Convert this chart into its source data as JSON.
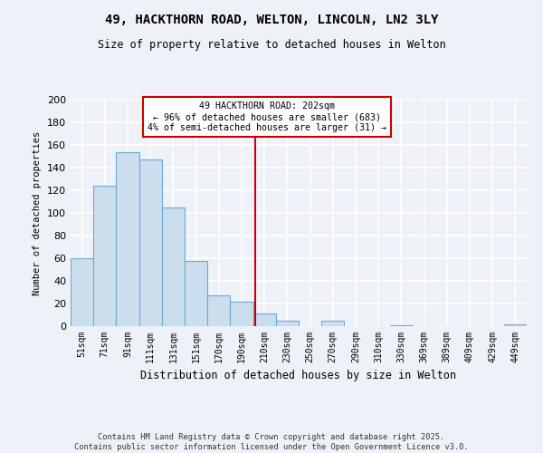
{
  "title": "49, HACKTHORN ROAD, WELTON, LINCOLN, LN2 3LY",
  "subtitle": "Size of property relative to detached houses in Welton",
  "xlabel": "Distribution of detached houses by size in Welton",
  "ylabel": "Number of detached properties",
  "bar_labels": [
    "51sqm",
    "71sqm",
    "91sqm",
    "111sqm",
    "131sqm",
    "151sqm",
    "170sqm",
    "190sqm",
    "210sqm",
    "230sqm",
    "250sqm",
    "270sqm",
    "290sqm",
    "310sqm",
    "330sqm",
    "369sqm",
    "389sqm",
    "409sqm",
    "429sqm",
    "449sqm"
  ],
  "bar_values": [
    60,
    124,
    154,
    147,
    105,
    58,
    27,
    22,
    11,
    5,
    0,
    5,
    0,
    0,
    1,
    0,
    0,
    0,
    0,
    2
  ],
  "bar_color": "#ccdded",
  "bar_edge_color": "#6aaad4",
  "ylim": [
    0,
    200
  ],
  "yticks": [
    0,
    20,
    40,
    60,
    80,
    100,
    120,
    140,
    160,
    180,
    200
  ],
  "vline_x": 7.6,
  "vline_color": "#cc0000",
  "annotation_title": "49 HACKTHORN ROAD: 202sqm",
  "annotation_line1": "← 96% of detached houses are smaller (683)",
  "annotation_line2": "4% of semi-detached houses are larger (31) →",
  "annotation_box_color": "#ffffff",
  "annotation_box_edge": "#cc0000",
  "footer_line1": "Contains HM Land Registry data © Crown copyright and database right 2025.",
  "footer_line2": "Contains public sector information licensed under the Open Government Licence v3.0.",
  "background_color": "#eef2f8",
  "grid_color": "#ffffff"
}
